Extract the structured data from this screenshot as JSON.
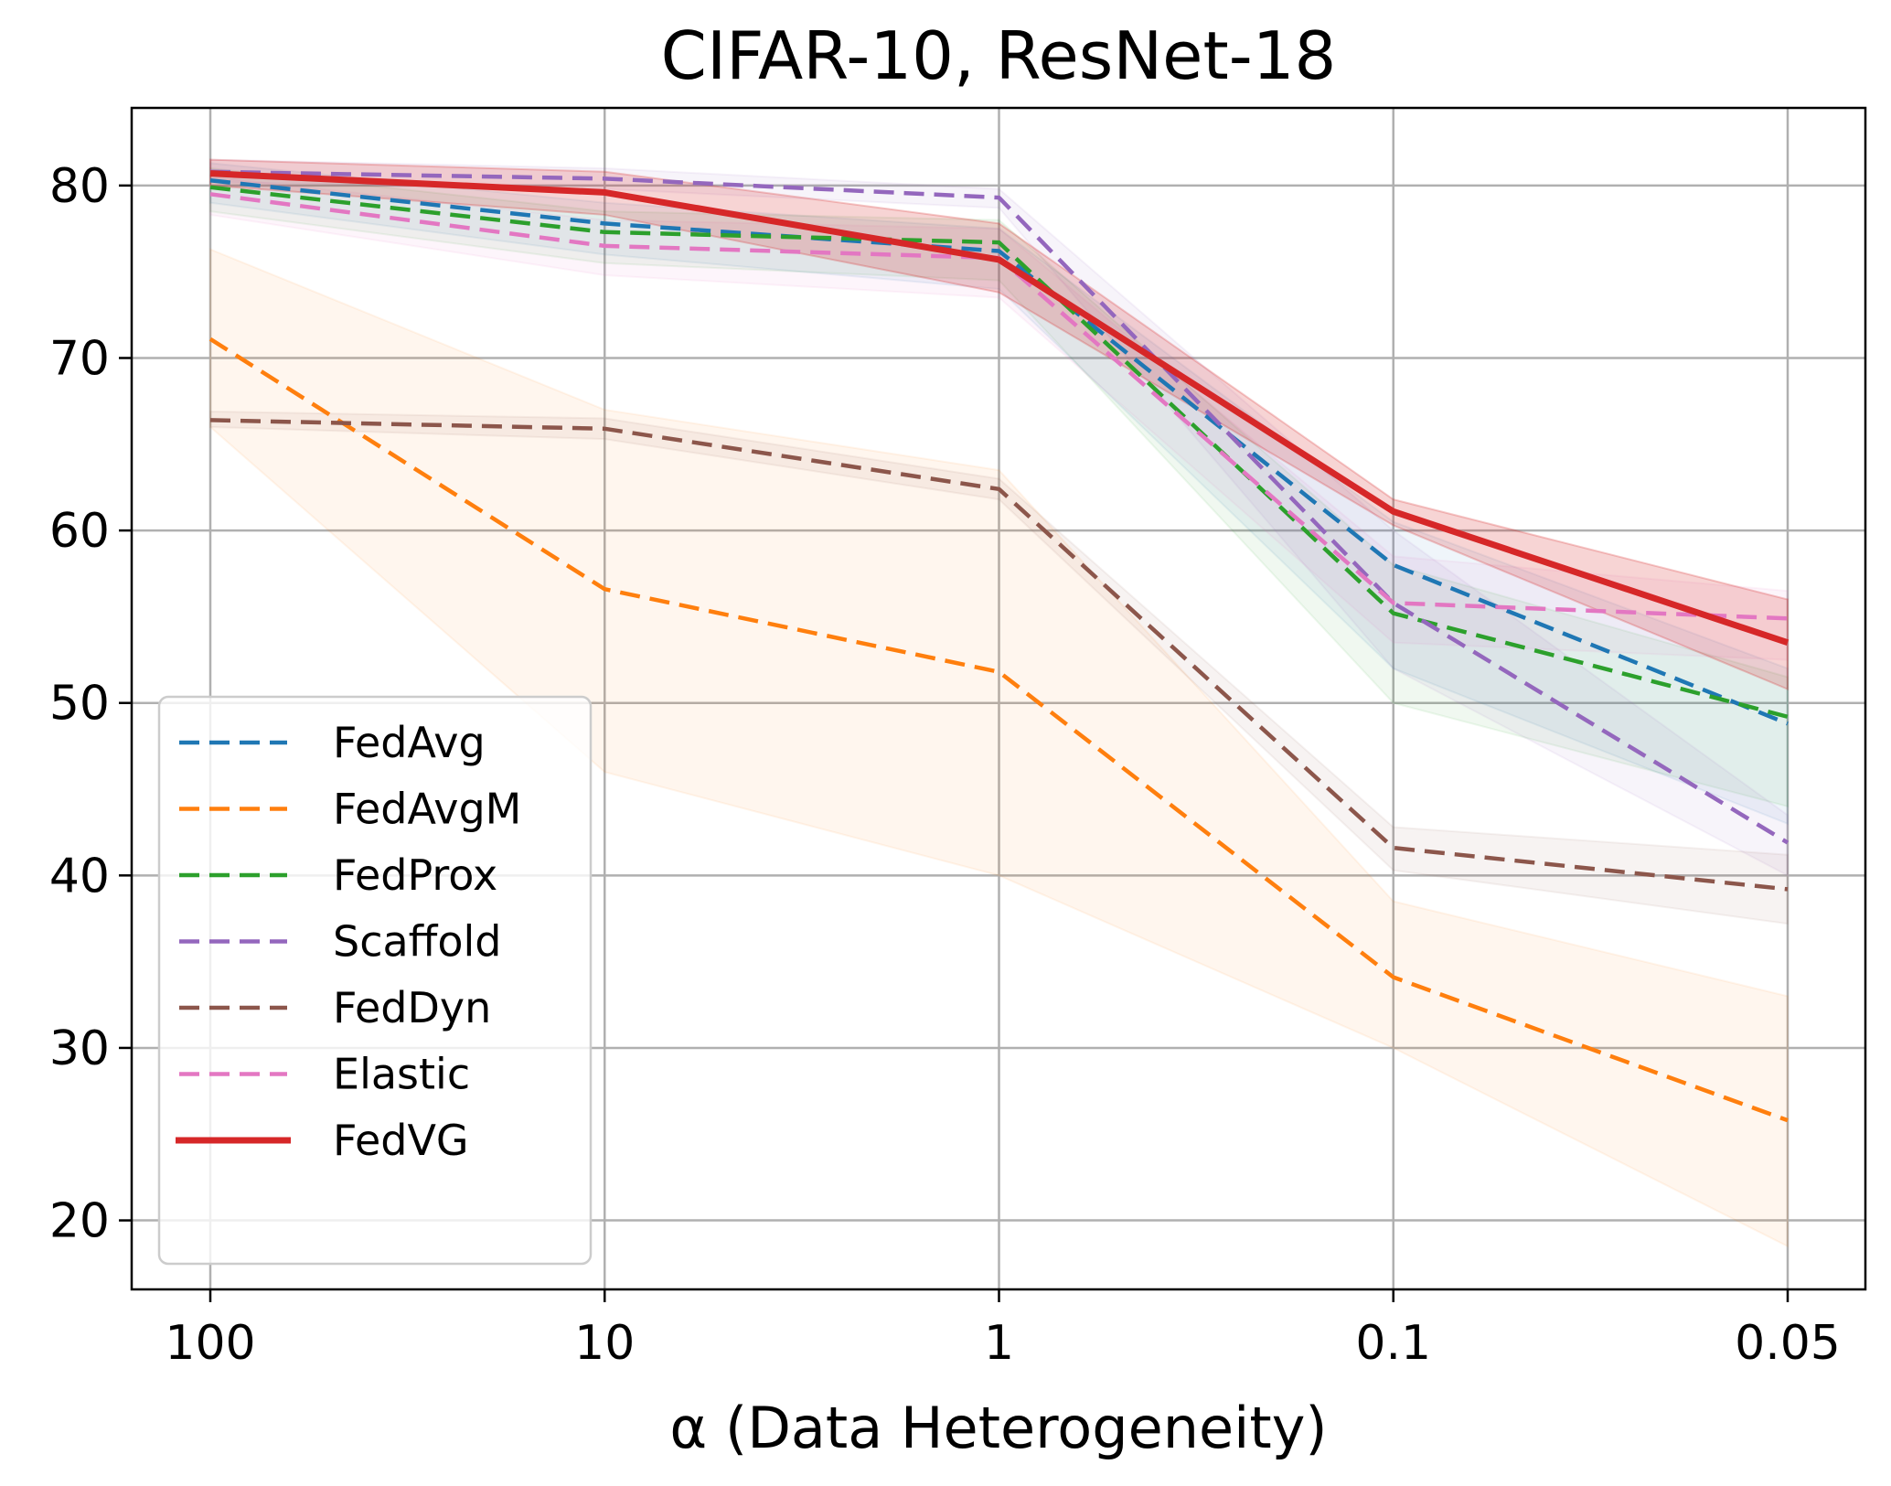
{
  "chart_data": {
    "type": "line",
    "title": "CIFAR-10, ResNet-18",
    "xlabel": "α (Data Heterogeneity)",
    "ylabel": "",
    "x": [
      "100",
      "10",
      "1",
      "0.1",
      "0.05"
    ],
    "ylim": [
      16,
      84.5
    ],
    "yticks": [
      20,
      30,
      40,
      50,
      60,
      70,
      80
    ],
    "grid": true,
    "legend_position": "lower-left",
    "series": [
      {
        "name": "FedAvg",
        "color": "#1f77b4",
        "style": "dashed",
        "values": [
          80.3,
          77.8,
          76.2,
          58.0,
          48.8
        ],
        "lower": [
          79.0,
          76.0,
          74.0,
          52.0,
          43.0
        ],
        "upper": [
          81.3,
          79.0,
          77.5,
          60.5,
          52.0
        ]
      },
      {
        "name": "FedAvgM",
        "color": "#ff7f0e",
        "style": "dashed",
        "values": [
          71.1,
          56.6,
          51.8,
          34.1,
          25.8
        ],
        "lower": [
          66.0,
          46.0,
          40.0,
          30.0,
          18.5
        ],
        "upper": [
          76.3,
          67.0,
          63.5,
          38.5,
          33.0
        ]
      },
      {
        "name": "FedProx",
        "color": "#2ca02c",
        "style": "dashed",
        "values": [
          79.9,
          77.3,
          76.7,
          55.2,
          49.2
        ],
        "lower": [
          78.5,
          75.5,
          74.5,
          50.0,
          44.0
        ],
        "upper": [
          81.0,
          78.5,
          78.0,
          58.0,
          51.5
        ]
      },
      {
        "name": "Scaffold",
        "color": "#9467bd",
        "style": "dashed",
        "values": [
          80.8,
          80.4,
          79.3,
          55.8,
          41.9
        ],
        "lower": [
          80.2,
          79.8,
          78.7,
          52.0,
          40.0
        ],
        "upper": [
          81.5,
          81.0,
          79.8,
          60.0,
          43.5
        ]
      },
      {
        "name": "FedDyn",
        "color": "#8c564b",
        "style": "dashed",
        "values": [
          66.4,
          65.9,
          62.4,
          41.6,
          39.2
        ],
        "lower": [
          66.0,
          65.3,
          61.8,
          40.3,
          37.2
        ],
        "upper": [
          66.9,
          66.5,
          63.0,
          42.8,
          41.2
        ]
      },
      {
        "name": "Elastic",
        "color": "#e377c2",
        "style": "dashed",
        "values": [
          79.5,
          76.5,
          75.8,
          55.8,
          54.9
        ],
        "lower": [
          78.3,
          74.8,
          73.5,
          53.5,
          52.5
        ],
        "upper": [
          80.5,
          78.0,
          77.5,
          58.5,
          56.5
        ]
      },
      {
        "name": "FedVG",
        "color": "#d62728",
        "style": "solid",
        "values": [
          80.7,
          79.6,
          75.7,
          61.1,
          53.5
        ],
        "lower": [
          80.0,
          78.3,
          73.8,
          60.3,
          50.8
        ],
        "upper": [
          81.5,
          80.8,
          77.8,
          61.8,
          56.0
        ]
      }
    ]
  }
}
